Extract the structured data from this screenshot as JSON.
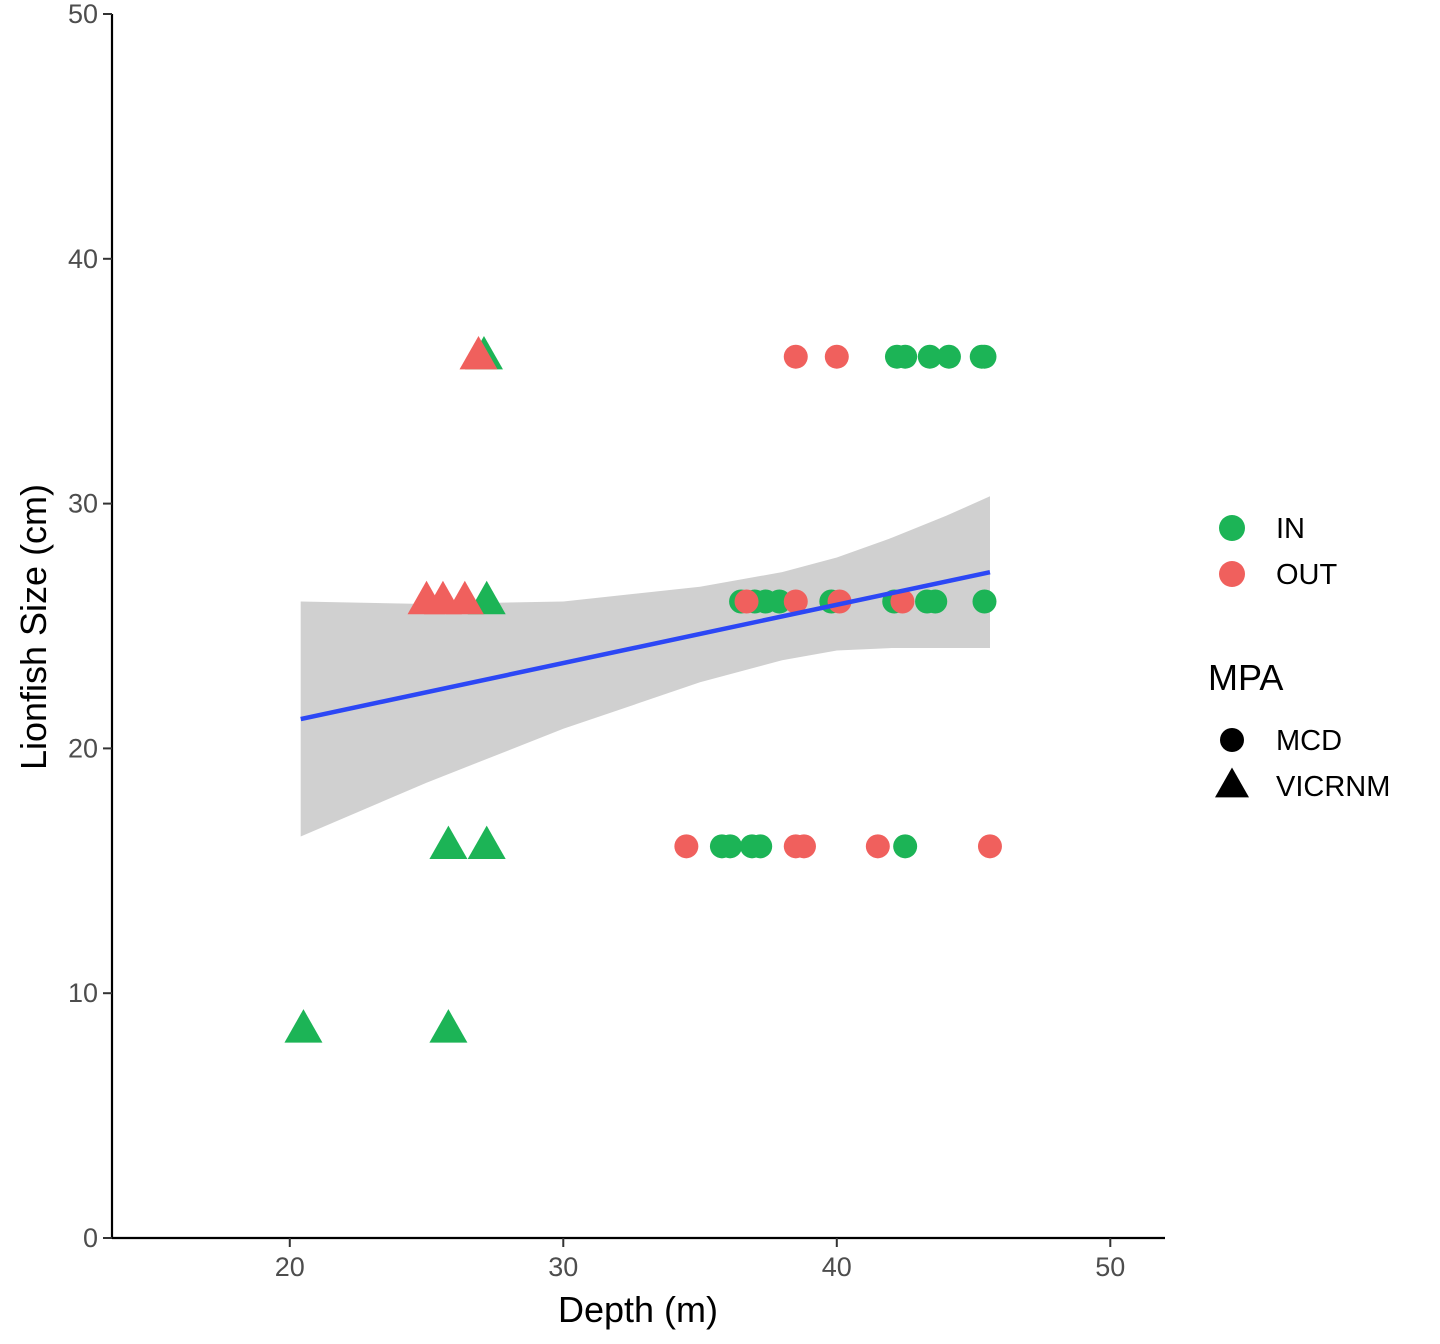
{
  "chart_data": {
    "type": "scatter",
    "title": "",
    "xlabel": "Depth (m)",
    "ylabel": "Lionfish Size (cm)",
    "xlim": [
      13.5,
      52
    ],
    "ylim": [
      0,
      50
    ],
    "xticks": [
      20,
      30,
      40,
      50
    ],
    "yticks": [
      0,
      10,
      20,
      30,
      40,
      50
    ],
    "grid": false,
    "colors": {
      "IN": "#1cb456",
      "OUT": "#f0605d",
      "trend": "#2c47f5",
      "band": "#c8c8c8"
    },
    "color_legend": {
      "title": "",
      "entries": [
        "IN",
        "OUT"
      ]
    },
    "shape_legend": {
      "title": "MPA",
      "entries": [
        "MCD",
        "VICRNM"
      ]
    },
    "series": [
      {
        "name": "IN",
        "points": [
          {
            "x": 27.1,
            "y": 36,
            "shape": "VICRNM"
          },
          {
            "x": 27.2,
            "y": 26,
            "shape": "VICRNM"
          },
          {
            "x": 25.8,
            "y": 16,
            "shape": "VICRNM"
          },
          {
            "x": 27.2,
            "y": 16,
            "shape": "VICRNM"
          },
          {
            "x": 20.5,
            "y": 8.5,
            "shape": "VICRNM"
          },
          {
            "x": 25.8,
            "y": 8.5,
            "shape": "VICRNM"
          },
          {
            "x": 42.2,
            "y": 36,
            "shape": "MCD"
          },
          {
            "x": 42.5,
            "y": 36,
            "shape": "MCD"
          },
          {
            "x": 43.4,
            "y": 36,
            "shape": "MCD"
          },
          {
            "x": 44.1,
            "y": 36,
            "shape": "MCD"
          },
          {
            "x": 45.3,
            "y": 36,
            "shape": "MCD"
          },
          {
            "x": 45.4,
            "y": 36,
            "shape": "MCD"
          },
          {
            "x": 36.5,
            "y": 26,
            "shape": "MCD"
          },
          {
            "x": 37.0,
            "y": 26,
            "shape": "MCD"
          },
          {
            "x": 37.4,
            "y": 26,
            "shape": "MCD"
          },
          {
            "x": 37.9,
            "y": 26,
            "shape": "MCD"
          },
          {
            "x": 39.8,
            "y": 26,
            "shape": "MCD"
          },
          {
            "x": 42.1,
            "y": 26,
            "shape": "MCD"
          },
          {
            "x": 43.3,
            "y": 26,
            "shape": "MCD"
          },
          {
            "x": 43.6,
            "y": 26,
            "shape": "MCD"
          },
          {
            "x": 45.4,
            "y": 26,
            "shape": "MCD"
          },
          {
            "x": 35.8,
            "y": 16,
            "shape": "MCD"
          },
          {
            "x": 36.1,
            "y": 16,
            "shape": "MCD"
          },
          {
            "x": 36.9,
            "y": 16,
            "shape": "MCD"
          },
          {
            "x": 37.2,
            "y": 16,
            "shape": "MCD"
          },
          {
            "x": 42.5,
            "y": 16,
            "shape": "MCD"
          }
        ]
      },
      {
        "name": "OUT",
        "points": [
          {
            "x": 26.9,
            "y": 36,
            "shape": "VICRNM"
          },
          {
            "x": 25.0,
            "y": 26,
            "shape": "VICRNM"
          },
          {
            "x": 25.6,
            "y": 26,
            "shape": "VICRNM"
          },
          {
            "x": 26.4,
            "y": 26,
            "shape": "VICRNM"
          },
          {
            "x": 38.5,
            "y": 36,
            "shape": "MCD"
          },
          {
            "x": 40.0,
            "y": 36,
            "shape": "MCD"
          },
          {
            "x": 36.7,
            "y": 26,
            "shape": "MCD"
          },
          {
            "x": 38.5,
            "y": 26,
            "shape": "MCD"
          },
          {
            "x": 40.1,
            "y": 26,
            "shape": "MCD"
          },
          {
            "x": 42.4,
            "y": 26,
            "shape": "MCD"
          },
          {
            "x": 34.5,
            "y": 16,
            "shape": "MCD"
          },
          {
            "x": 38.5,
            "y": 16,
            "shape": "MCD"
          },
          {
            "x": 38.8,
            "y": 16,
            "shape": "MCD"
          },
          {
            "x": 41.5,
            "y": 16,
            "shape": "MCD"
          },
          {
            "x": 45.6,
            "y": 16,
            "shape": "MCD"
          }
        ]
      }
    ],
    "trend_line": {
      "x": [
        20.4,
        45.6
      ],
      "y": [
        21.2,
        27.2
      ]
    },
    "confidence_band": {
      "x": [
        20.4,
        25,
        30,
        35,
        38,
        40,
        42,
        44,
        45.6
      ],
      "lower": [
        16.4,
        18.6,
        20.8,
        22.7,
        23.6,
        24.0,
        24.1,
        24.1,
        24.1
      ],
      "upper": [
        26.0,
        25.9,
        26.0,
        26.6,
        27.2,
        27.8,
        28.6,
        29.5,
        30.3
      ]
    }
  }
}
